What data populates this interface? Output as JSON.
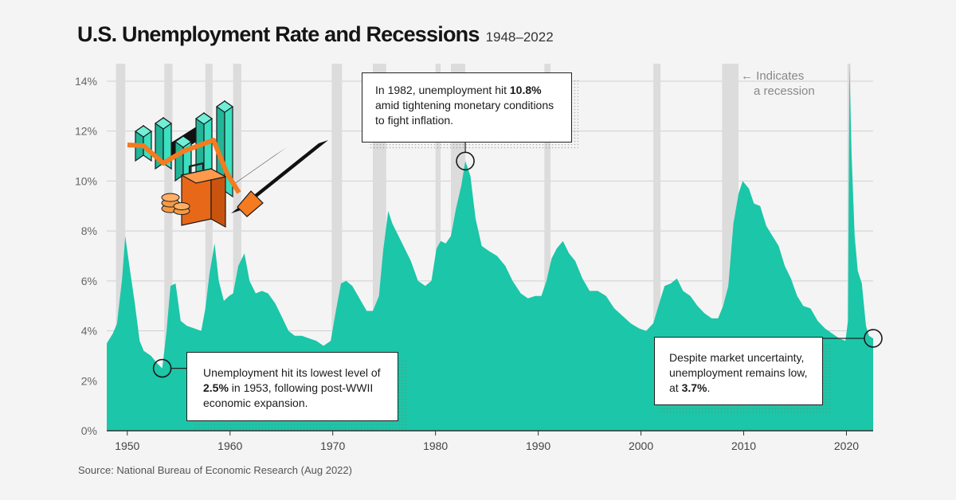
{
  "title": "U.S. Unemployment Rate and Recessions",
  "subtitle": "1948–2022",
  "source": "Source: National Bureau of Economic Research (Aug 2022)",
  "recession_note": {
    "arrow": "←",
    "line1": "Indicates",
    "line2": "a recession"
  },
  "annotations": {
    "a1982": {
      "pre": "In 1982, unemployment hit ",
      "value": "10.8%",
      "post": "amid tightening monetary conditions to fight inflation."
    },
    "a1953": {
      "pre": "Unemployment hit its lowest level of ",
      "value": "2.5%",
      "post": " in 1953, following post-WWII economic expansion."
    },
    "a2022": {
      "pre": "Despite market uncertainty, unemployment remains low, at ",
      "value": "3.7%",
      "post": "."
    }
  },
  "colors": {
    "area": "#1cc6a8",
    "recession": "#dcdcdc",
    "grid": "#cfcfcf",
    "icon_teal": "#2fd3b3",
    "icon_orange": "#f47b20"
  },
  "chart_data": {
    "type": "area",
    "title": "U.S. Unemployment Rate and Recessions",
    "subtitle": "1948–2022",
    "xlim": [
      1948,
      2022.6
    ],
    "ylim": [
      0,
      14.7
    ],
    "y_ticks": [
      "0%",
      "2%",
      "4%",
      "6%",
      "8%",
      "10%",
      "12%",
      "14%"
    ],
    "x_ticks": [
      "1950",
      "1960",
      "1970",
      "1980",
      "1990",
      "2000",
      "2010",
      "2020"
    ],
    "grid": true,
    "series": [
      {
        "x": [
          1948.0,
          1948.6,
          1949.0,
          1949.5,
          1949.8,
          1950.2,
          1950.7,
          1951.2,
          1951.6,
          1952.3,
          1952.9,
          1953.4,
          1953.8,
          1954.2,
          1954.7,
          1955.2,
          1955.8,
          1956.5,
          1957.2,
          1957.6,
          1958.0,
          1958.5,
          1958.9,
          1959.4,
          1959.9,
          1960.3,
          1960.8,
          1961.4,
          1961.9,
          1962.5,
          1963.1,
          1963.7,
          1964.4,
          1965.0,
          1965.7,
          1966.3,
          1967.0,
          1967.7,
          1968.4,
          1969.1,
          1969.8,
          1970.3,
          1970.8,
          1971.3,
          1971.9,
          1972.6,
          1973.3,
          1973.9,
          1974.5,
          1974.9,
          1975.4,
          1975.8,
          1976.4,
          1977.0,
          1977.6,
          1978.3,
          1979.0,
          1979.6,
          1980.1,
          1980.5,
          1981.0,
          1981.5,
          1982.0,
          1982.5,
          1982.9,
          1983.4,
          1983.9,
          1984.5,
          1985.2,
          1986.0,
          1986.8,
          1987.5,
          1988.3,
          1989.0,
          1989.7,
          1990.3,
          1990.8,
          1991.3,
          1991.8,
          1992.4,
          1993.0,
          1993.6,
          1994.3,
          1995.0,
          1995.8,
          1996.6,
          1997.4,
          1998.2,
          1999.0,
          1999.8,
          2000.5,
          2001.2,
          2001.7,
          2002.3,
          2002.9,
          2003.5,
          2004.1,
          2004.8,
          2005.5,
          2006.2,
          2006.9,
          2007.5,
          2008.0,
          2008.5,
          2009.0,
          2009.5,
          2009.9,
          2010.5,
          2011.0,
          2011.6,
          2012.2,
          2012.8,
          2013.4,
          2014.0,
          2014.6,
          2015.2,
          2015.8,
          2016.5,
          2017.2,
          2017.9,
          2018.6,
          2019.3,
          2019.9,
          2020.15,
          2020.3,
          2020.5,
          2020.8,
          2021.1,
          2021.5,
          2021.9,
          2022.2,
          2022.6
        ],
        "y": [
          3.5,
          3.9,
          4.3,
          6.1,
          7.8,
          6.6,
          5.2,
          3.6,
          3.2,
          3.0,
          2.7,
          2.5,
          3.9,
          5.8,
          5.9,
          4.4,
          4.2,
          4.1,
          4.0,
          4.9,
          6.3,
          7.5,
          6.0,
          5.2,
          5.4,
          5.5,
          6.6,
          7.1,
          6.0,
          5.5,
          5.6,
          5.5,
          5.1,
          4.6,
          4.0,
          3.8,
          3.8,
          3.7,
          3.6,
          3.4,
          3.6,
          4.8,
          5.9,
          6.0,
          5.8,
          5.3,
          4.8,
          4.8,
          5.4,
          7.2,
          8.8,
          8.3,
          7.8,
          7.3,
          6.8,
          6.0,
          5.8,
          6.0,
          7.3,
          7.6,
          7.5,
          7.8,
          8.9,
          9.8,
          10.8,
          10.2,
          8.5,
          7.4,
          7.2,
          7.0,
          6.6,
          6.0,
          5.5,
          5.3,
          5.4,
          5.4,
          6.0,
          6.9,
          7.3,
          7.6,
          7.1,
          6.8,
          6.1,
          5.6,
          5.6,
          5.4,
          4.9,
          4.6,
          4.3,
          4.1,
          4.0,
          4.3,
          5.0,
          5.8,
          5.9,
          6.1,
          5.6,
          5.4,
          5.0,
          4.7,
          4.5,
          4.5,
          5.0,
          5.8,
          8.3,
          9.5,
          10.0,
          9.7,
          9.1,
          9.0,
          8.2,
          7.8,
          7.4,
          6.6,
          6.1,
          5.4,
          5.0,
          4.9,
          4.4,
          4.1,
          3.9,
          3.7,
          3.6,
          4.4,
          14.7,
          11.1,
          7.8,
          6.4,
          5.9,
          4.2,
          3.8,
          3.7
        ]
      }
    ],
    "recessions": [
      [
        1948.9,
        1949.8
      ],
      [
        1953.6,
        1954.4
      ],
      [
        1957.6,
        1958.3
      ],
      [
        1960.3,
        1961.1
      ],
      [
        1969.9,
        1970.9
      ],
      [
        1973.9,
        1975.2
      ],
      [
        1980.0,
        1980.5
      ],
      [
        1981.5,
        1982.9
      ],
      [
        1990.6,
        1991.2
      ],
      [
        2001.2,
        2001.9
      ],
      [
        2007.9,
        2009.5
      ],
      [
        2020.1,
        2020.4
      ]
    ],
    "points": [
      {
        "x": 1953.4,
        "y": 2.5
      },
      {
        "x": 1982.9,
        "y": 10.8
      },
      {
        "x": 2022.6,
        "y": 3.7
      }
    ]
  }
}
